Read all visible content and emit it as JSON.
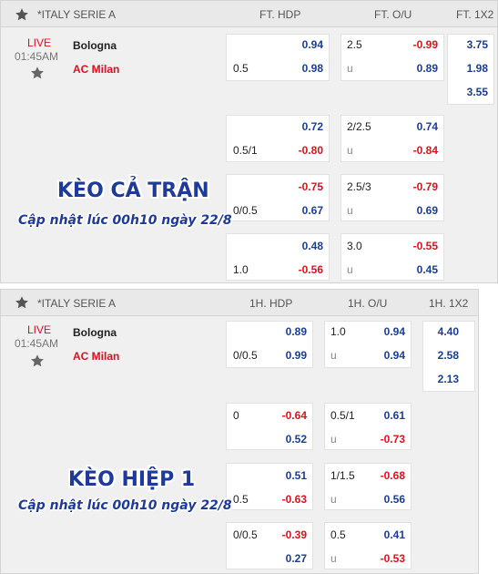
{
  "ft": {
    "league": "*ITALY SERIE A",
    "col_hdp": "FT. HDP",
    "col_ou": "FT. O/U",
    "col_1x2": "FT. 1X2",
    "status": "LIVE",
    "time": "01:45AM",
    "home": "Bologna",
    "away": "AC Milan",
    "rows": [
      {
        "hdp_line": "0.5",
        "hdp_home": "0.94",
        "hdp_away": "0.98",
        "ou_line": "2.5",
        "ou_over": "-0.99",
        "ou_u": "u",
        "ou_under": "0.89",
        "x1": "3.75",
        "x2": "1.98",
        "x3": "3.55"
      },
      {
        "hdp_line": "0.5/1",
        "hdp_home": "0.72",
        "hdp_away": "-0.80",
        "ou_line": "2/2.5",
        "ou_over": "0.74",
        "ou_u": "u",
        "ou_under": "-0.84"
      },
      {
        "hdp_line": "0/0.5",
        "hdp_home": "-0.75",
        "hdp_away": "0.67",
        "ou_line": "2.5/3",
        "ou_over": "-0.79",
        "ou_u": "u",
        "ou_under": "0.69"
      },
      {
        "hdp_line": "1.0",
        "hdp_home": "0.48",
        "hdp_away": "-0.56",
        "ou_line": "3.0",
        "ou_over": "-0.55",
        "ou_u": "u",
        "ou_under": "0.45"
      }
    ],
    "watermark_title": "KÈO CẢ TRẬN",
    "watermark_sub": "Cập nhật lúc 00h10 ngày 22/8"
  },
  "h1": {
    "league": "*ITALY SERIE A",
    "col_hdp": "1H. HDP",
    "col_ou": "1H. O/U",
    "col_1x2": "1H. 1X2",
    "status": "LIVE",
    "time": "01:45AM",
    "home": "Bologna",
    "away": "AC Milan",
    "rows": [
      {
        "hdp_line": "0/0.5",
        "hdp_home": "0.89",
        "hdp_away": "0.99",
        "ou_line": "1.0",
        "ou_over": "0.94",
        "ou_u": "u",
        "ou_under": "0.94",
        "x1": "4.40",
        "x2": "2.58",
        "x3": "2.13"
      },
      {
        "hdp_line": "0",
        "hdp_home": "-0.64",
        "hdp_away": "0.52",
        "ou_line": "0.5/1",
        "ou_over": "0.61",
        "ou_u": "u",
        "ou_under": "-0.73"
      },
      {
        "hdp_line": "0.5",
        "hdp_home": "0.51",
        "hdp_away": "-0.63",
        "ou_line": "1/1.5",
        "ou_over": "-0.68",
        "ou_u": "u",
        "ou_under": "0.56"
      },
      {
        "hdp_line": "0/0.5",
        "hdp_home": "-0.39",
        "hdp_away": "0.27",
        "ou_line": "0.5",
        "ou_over": "0.41",
        "ou_u": "u",
        "ou_under": "-0.53"
      }
    ],
    "watermark_title": "KÈO HIỆP 1",
    "watermark_sub": "Cập nhật lúc 00h10 ngày 22/8"
  },
  "colors": {
    "positive": "#1a3d9a",
    "negative": "#e0101a",
    "live": "#e0101a",
    "watermark": "#1e3a9a"
  },
  "icons": {
    "favorite": "star-icon"
  }
}
